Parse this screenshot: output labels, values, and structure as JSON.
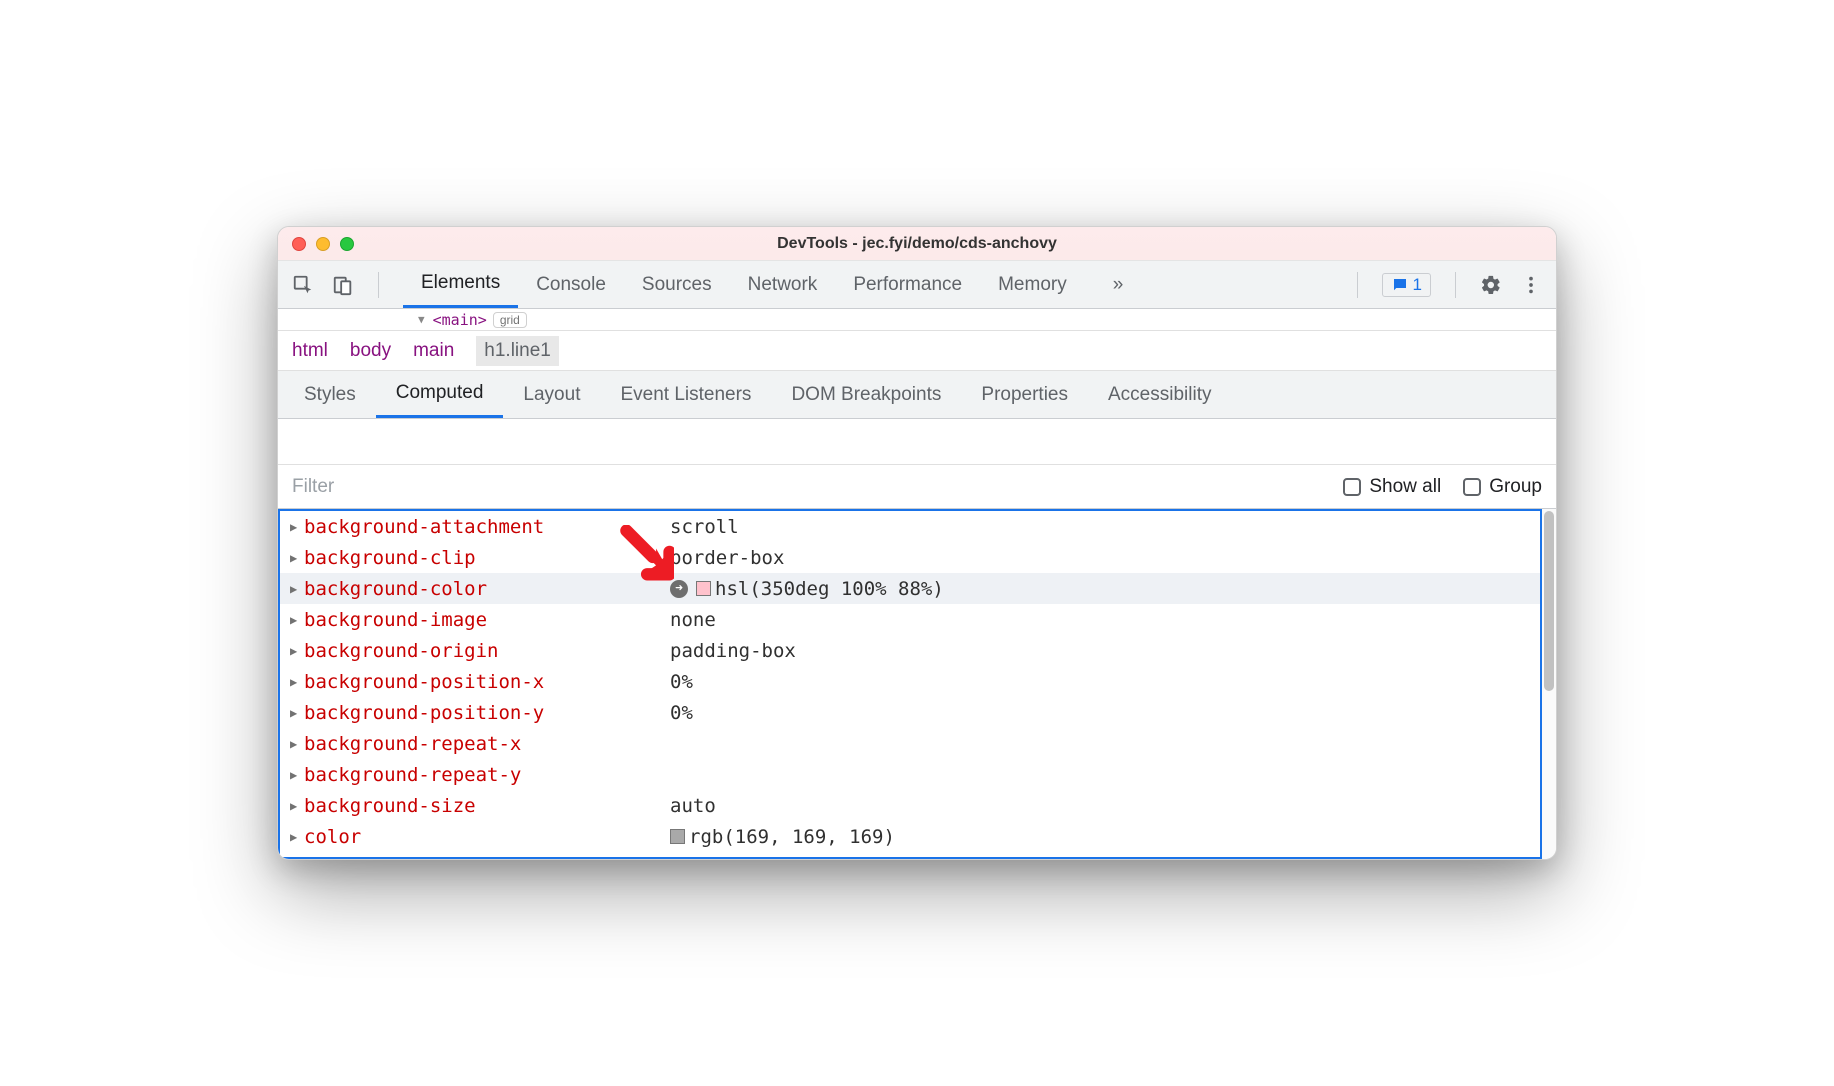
{
  "window": {
    "title": "DevTools - jec.fyi/demo/cds-anchovy"
  },
  "tabs": {
    "items": [
      "Elements",
      "Console",
      "Sources",
      "Network",
      "Performance",
      "Memory"
    ],
    "active_index": 0,
    "overflow_glyph": "»",
    "message_count": "1"
  },
  "dom_strip": {
    "tag_open": "<main>",
    "badge": "grid"
  },
  "breadcrumb": {
    "items": [
      "html",
      "body",
      "main",
      "h1.line1"
    ],
    "selected_index": 3
  },
  "subtabs": {
    "items": [
      "Styles",
      "Computed",
      "Layout",
      "Event Listeners",
      "DOM Breakpoints",
      "Properties",
      "Accessibility"
    ],
    "active_index": 1
  },
  "filter": {
    "placeholder": "Filter",
    "show_all_label": "Show all",
    "group_label": "Group"
  },
  "computed": {
    "highlight_index": 2,
    "rows": [
      {
        "name": "background-attachment",
        "value": "scroll"
      },
      {
        "name": "background-clip",
        "value": "border-box"
      },
      {
        "name": "background-color",
        "value": "hsl(350deg 100% 88%)",
        "swatch": "#ffc2cc",
        "goto": true
      },
      {
        "name": "background-image",
        "value": "none"
      },
      {
        "name": "background-origin",
        "value": "padding-box"
      },
      {
        "name": "background-position-x",
        "value": "0%"
      },
      {
        "name": "background-position-y",
        "value": "0%"
      },
      {
        "name": "background-repeat-x",
        "value": ""
      },
      {
        "name": "background-repeat-y",
        "value": ""
      },
      {
        "name": "background-size",
        "value": "auto"
      },
      {
        "name": "color",
        "value": "rgb(169, 169, 169)",
        "swatch": "#a9a9a9"
      }
    ]
  },
  "colors": {
    "accent": "#1a73e8",
    "prop_name": "#c80000",
    "arrow": "#ed1c24"
  }
}
